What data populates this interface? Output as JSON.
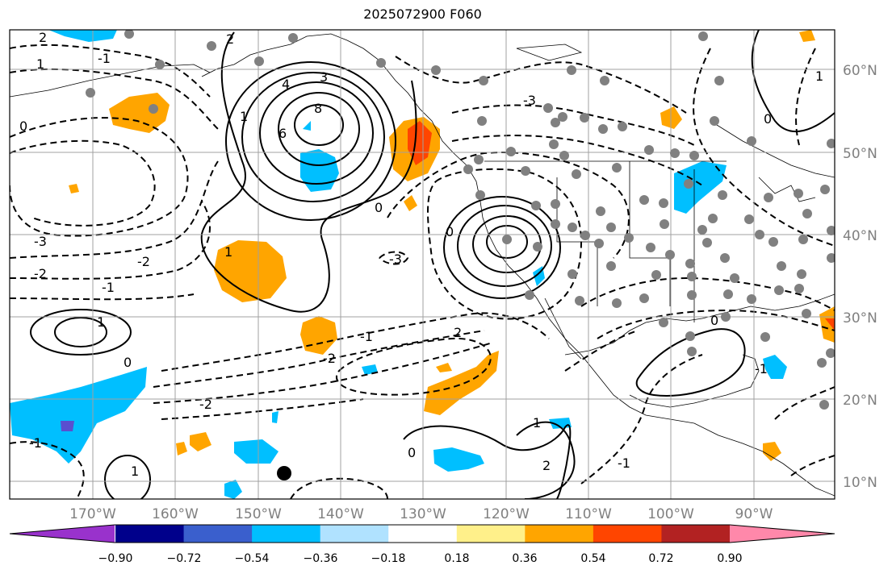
{
  "title": "2025072900 F060",
  "lat_labels": [
    "60°N",
    "50°N",
    "40°N",
    "30°N",
    "20°N",
    "10°N"
  ],
  "lon_labels": [
    "170°W",
    "160°W",
    "150°W",
    "140°W",
    "130°W",
    "120°W",
    "110°W",
    "100°W",
    "90°W"
  ],
  "colorbar": {
    "colors": [
      "#9932cc",
      "#00008b",
      "#3a5fcd",
      "#00bfff",
      "#b0e2ff",
      "#ffffff",
      "#fff08a",
      "#ffa500",
      "#ff4500",
      "#b22222",
      "#ff88aa"
    ],
    "tick_labels": [
      "−0.90",
      "−0.72",
      "−0.54",
      "−0.36",
      "−0.18",
      "0.18",
      "0.36",
      "0.54",
      "0.72",
      "0.90"
    ]
  },
  "contour_labels": [
    "2",
    "1",
    "0",
    "-3",
    "-2",
    "-1",
    "8",
    "6",
    "4",
    "3",
    "2",
    "1",
    "0",
    "-3",
    "1",
    "-1",
    "-2",
    "-2",
    "0",
    "-2",
    "-1",
    "1",
    "2",
    "0",
    "-1",
    "-3",
    "0",
    "1",
    "1",
    "2",
    "0",
    "-1",
    "-1",
    "1",
    "0"
  ],
  "station_marker": "black-dot"
}
